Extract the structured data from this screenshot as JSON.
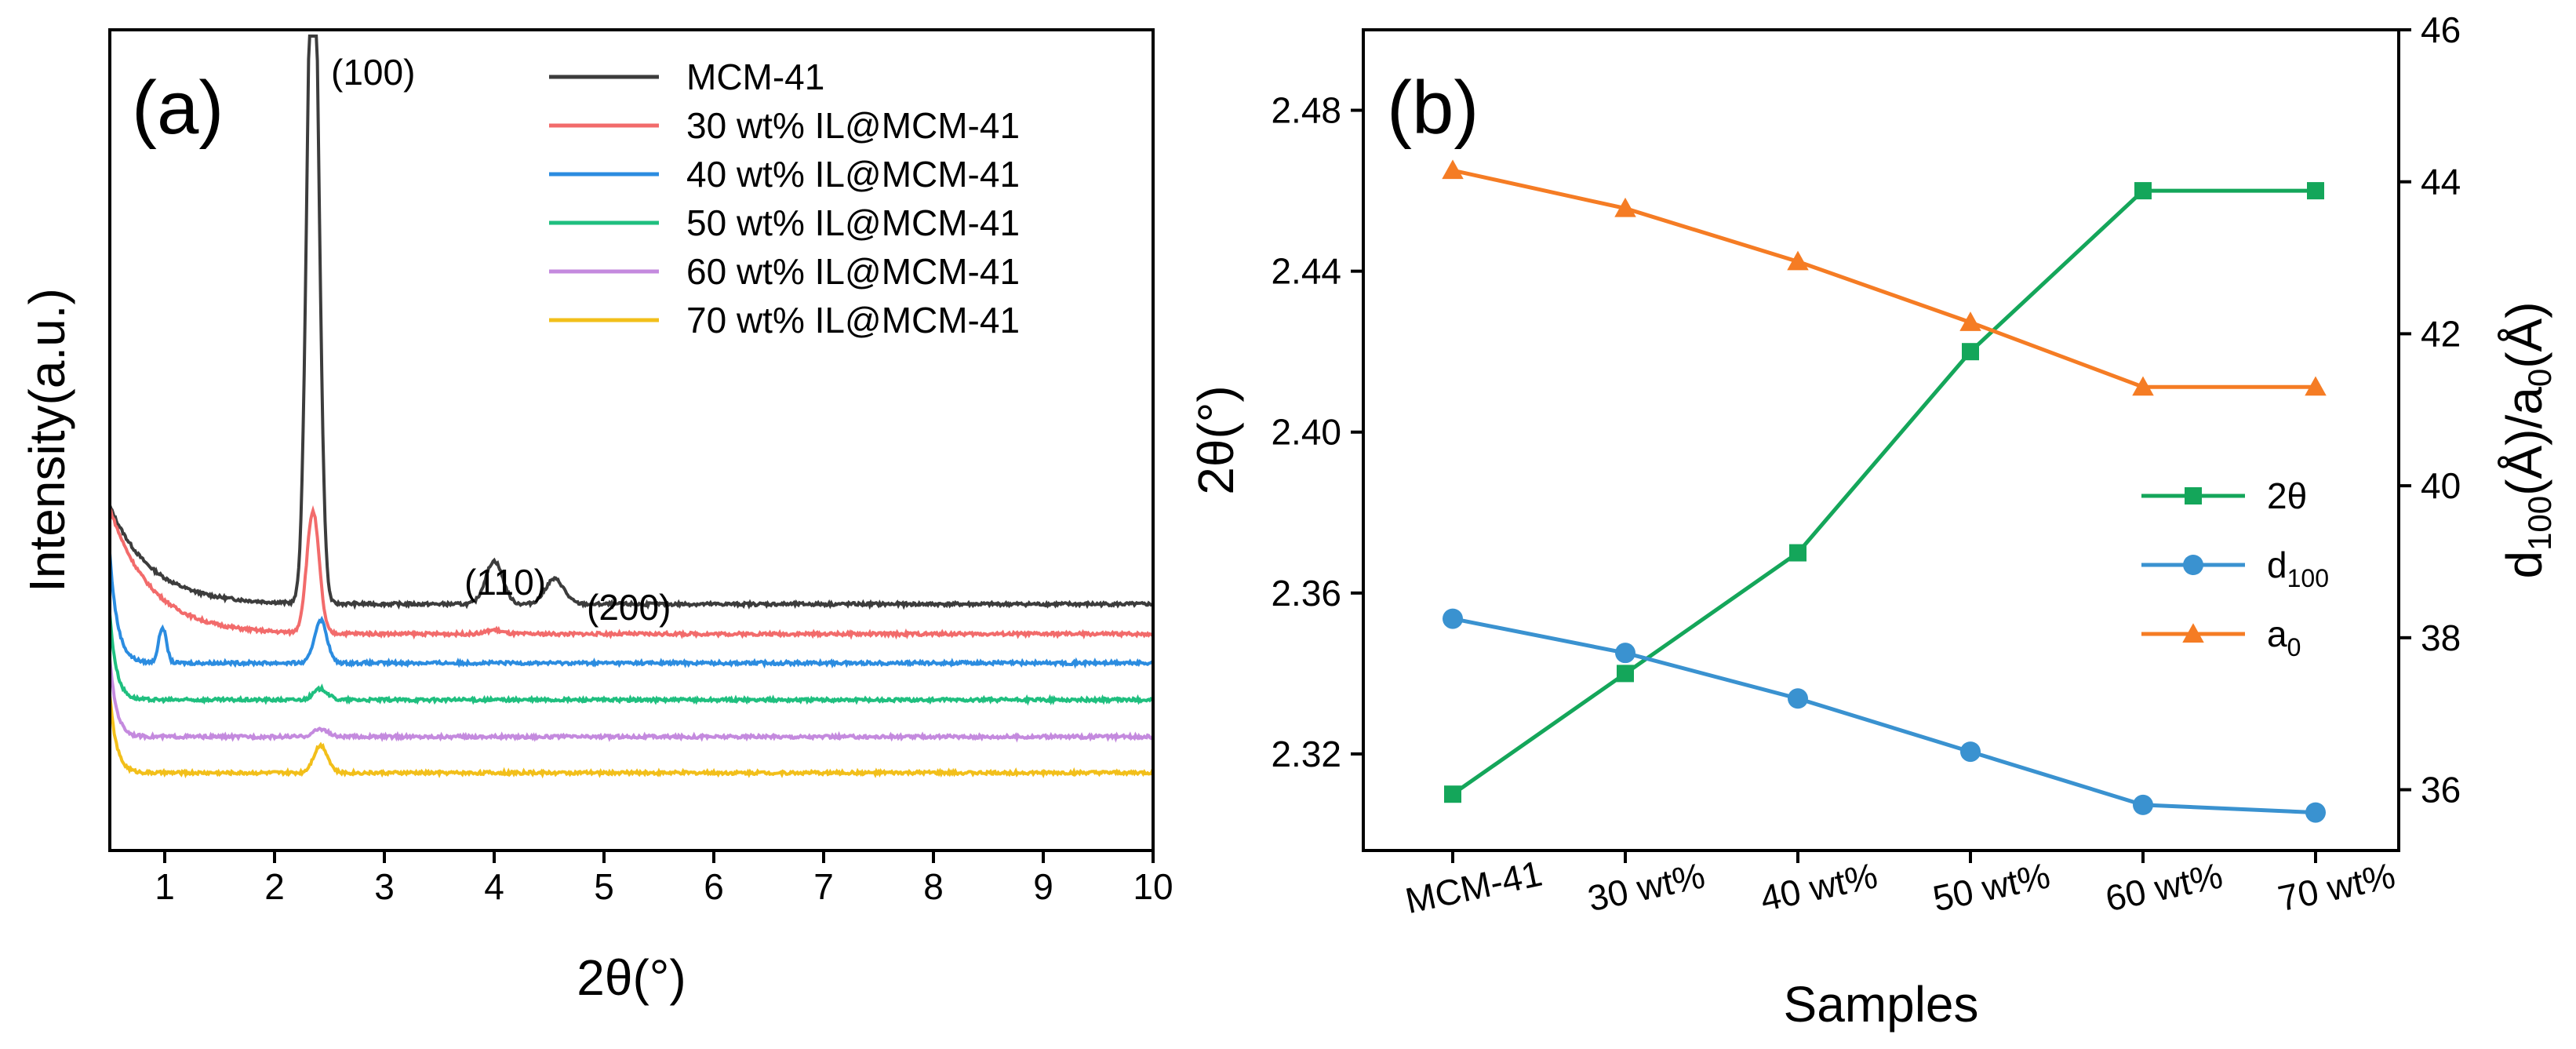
{
  "chart_data": [
    {
      "panel": "(a)",
      "type": "line",
      "xlabel": "2θ(°)",
      "ylabel": "Intensity(a.u.)",
      "xlim": [
        0.5,
        10
      ],
      "xticks": [
        1,
        2,
        3,
        4,
        5,
        6,
        7,
        8,
        9,
        10
      ],
      "yticks_shown": false,
      "legend_position": "top-right",
      "annotations": [
        "(100)",
        "(110)",
        "(200)"
      ],
      "series": [
        {
          "name": "MCM-41",
          "color": "#3c3c3c",
          "baseline": 1.0,
          "amp0": 1.25,
          "decay": 0.38,
          "peaks": [
            [
              2.35,
              9.2,
              0.075
            ],
            [
              4.0,
              0.55,
              0.11
            ],
            [
              4.55,
              0.32,
              0.12
            ]
          ]
        },
        {
          "name": "30 wt% IL@MCM-41",
          "color": "#f26b6b",
          "baseline": 0.62,
          "amp0": 1.6,
          "decay": 0.38,
          "peaks": [
            [
              2.35,
              1.55,
              0.08
            ],
            [
              4.0,
              0.05,
              0.1
            ]
          ]
        },
        {
          "name": "40 wt% IL@MCM-41",
          "color": "#2b8ce0",
          "baseline": 0.25,
          "amp0": 1.4,
          "decay": 0.07,
          "peaks": [
            [
              0.98,
              0.45,
              0.05
            ],
            [
              2.42,
              0.55,
              0.08
            ]
          ]
        },
        {
          "name": "50 wt% IL@MCM-41",
          "color": "#1fbf7f",
          "baseline": -0.22,
          "amp0": 1.1,
          "decay": 0.06,
          "peaks": [
            [
              2.42,
              0.14,
              0.09
            ]
          ]
        },
        {
          "name": "60 wt% IL@MCM-41",
          "color": "#c48ade",
          "baseline": -0.69,
          "amp0": 1.0,
          "decay": 0.06,
          "peaks": [
            [
              2.42,
              0.1,
              0.09
            ]
          ]
        },
        {
          "name": "70 wt% IL@MCM-41",
          "color": "#f2bf1a",
          "baseline": -1.15,
          "amp0": 1.0,
          "decay": 0.06,
          "peaks": [
            [
              2.42,
              0.35,
              0.09
            ]
          ]
        }
      ]
    },
    {
      "panel": "(b)",
      "type": "line",
      "xlabel": "Samples",
      "ylabel_left": "2θ(°)",
      "ylabel_right": "d100(Å)/a0(Å)",
      "categories": [
        "MCM-41",
        "30 wt%",
        "40 wt%",
        "50 wt%",
        "60 wt%",
        "70 wt%"
      ],
      "y_left_lim": [
        2.296,
        2.5
      ],
      "y_left_ticks": [
        2.32,
        2.36,
        2.4,
        2.44,
        2.48
      ],
      "y_right_lim": [
        35.2,
        46
      ],
      "y_right_ticks": [
        36,
        38,
        40,
        42,
        44,
        46
      ],
      "legend_position": "center-right",
      "series": [
        {
          "name": "2θ",
          "sub": "",
          "marker": "square",
          "color": "#14a65a",
          "axis": "left",
          "values": [
            2.31,
            2.34,
            2.37,
            2.42,
            2.46,
            2.46
          ]
        },
        {
          "name": "d",
          "sub": "100",
          "marker": "circle",
          "color": "#3a92d0",
          "axis": "right",
          "values": [
            38.25,
            37.8,
            37.2,
            36.5,
            35.8,
            35.7
          ]
        },
        {
          "name": "a",
          "sub": "0",
          "marker": "triangle",
          "color": "#f57c24",
          "axis": "right",
          "values": [
            44.15,
            43.65,
            42.95,
            42.15,
            41.3,
            41.3
          ]
        }
      ]
    }
  ]
}
